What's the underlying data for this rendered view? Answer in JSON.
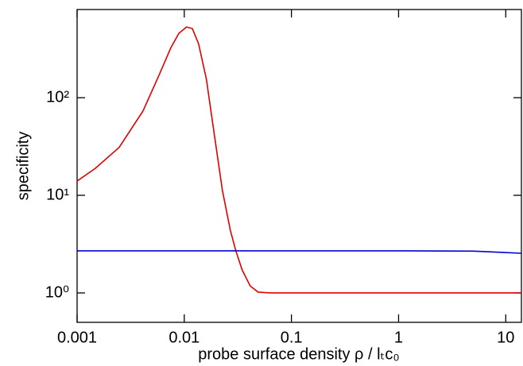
{
  "chart_data": {
    "type": "line",
    "x_label": "probe surface density   ρ / lₜc₀",
    "y_label": "specificity",
    "xscale": "log",
    "yscale": "log",
    "xlim": [
      0.001,
      14
    ],
    "ylim": [
      0.5,
      800
    ],
    "xticks": [
      0.001,
      0.01,
      0.1,
      1,
      10
    ],
    "yticks": [
      {
        "value": 1,
        "label": "10⁰"
      },
      {
        "value": 10,
        "label": "10¹"
      },
      {
        "value": 100,
        "label": "10²"
      }
    ],
    "series": [
      {
        "name": "red",
        "color": "#e00000",
        "x": [
          0.001,
          0.00148,
          0.00247,
          0.00412,
          0.0058,
          0.0075,
          0.0089,
          0.0105,
          0.0119,
          0.0136,
          0.0161,
          0.0191,
          0.0227,
          0.0269,
          0.0303,
          0.0347,
          0.0412,
          0.0489,
          0.063,
          0.089,
          14
        ],
        "values": [
          14,
          18.9,
          31,
          73,
          169,
          325,
          456,
          530,
          510,
          357,
          154,
          41.5,
          11.2,
          4.39,
          2.7,
          1.72,
          1.18,
          1.02,
          1.0,
          1.0,
          1.0
        ]
      },
      {
        "name": "blue",
        "color": "#0000d0",
        "x": [
          0.001,
          0.01,
          0.1,
          1,
          5,
          14
        ],
        "values": [
          2.7,
          2.7,
          2.7,
          2.7,
          2.68,
          2.55
        ]
      }
    ]
  }
}
